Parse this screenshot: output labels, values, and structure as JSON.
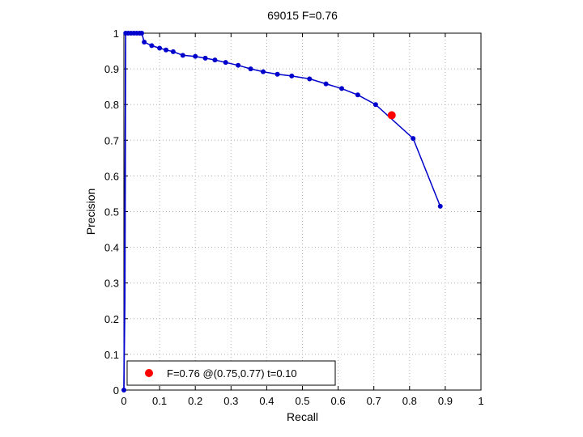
{
  "chart_data": {
    "type": "line",
    "title": "69015 F=0.76",
    "xlabel": "Recall",
    "ylabel": "Precision",
    "xlim": [
      0,
      1
    ],
    "ylim": [
      0,
      1
    ],
    "grid": true,
    "x_ticks": [
      "0",
      "0.1",
      "0.2",
      "0.3",
      "0.4",
      "0.5",
      "0.6",
      "0.7",
      "0.8",
      "0.9",
      "1"
    ],
    "y_ticks": [
      "0",
      "0.1",
      "0.2",
      "0.3",
      "0.4",
      "0.5",
      "0.6",
      "0.7",
      "0.8",
      "0.9",
      "1"
    ],
    "series": [
      {
        "color": "#0000cc",
        "marker": "dot",
        "points": [
          {
            "x": 0.0,
            "y": 0.0
          },
          {
            "x": 0.005,
            "y": 1.0
          },
          {
            "x": 0.012,
            "y": 1.0
          },
          {
            "x": 0.02,
            "y": 1.0
          },
          {
            "x": 0.028,
            "y": 1.0
          },
          {
            "x": 0.036,
            "y": 1.0
          },
          {
            "x": 0.044,
            "y": 1.0
          },
          {
            "x": 0.05,
            "y": 1.0
          },
          {
            "x": 0.057,
            "y": 0.975
          },
          {
            "x": 0.078,
            "y": 0.965
          },
          {
            "x": 0.1,
            "y": 0.958
          },
          {
            "x": 0.118,
            "y": 0.953
          },
          {
            "x": 0.138,
            "y": 0.948
          },
          {
            "x": 0.165,
            "y": 0.938
          },
          {
            "x": 0.2,
            "y": 0.935
          },
          {
            "x": 0.228,
            "y": 0.93
          },
          {
            "x": 0.255,
            "y": 0.925
          },
          {
            "x": 0.285,
            "y": 0.918
          },
          {
            "x": 0.32,
            "y": 0.91
          },
          {
            "x": 0.355,
            "y": 0.9
          },
          {
            "x": 0.39,
            "y": 0.892
          },
          {
            "x": 0.43,
            "y": 0.885
          },
          {
            "x": 0.47,
            "y": 0.88
          },
          {
            "x": 0.52,
            "y": 0.872
          },
          {
            "x": 0.566,
            "y": 0.858
          },
          {
            "x": 0.61,
            "y": 0.845
          },
          {
            "x": 0.655,
            "y": 0.827
          },
          {
            "x": 0.705,
            "y": 0.8
          },
          {
            "x": 0.81,
            "y": 0.705
          },
          {
            "x": 0.886,
            "y": 0.515
          }
        ],
        "lead_in": [
          {
            "x": 0.0,
            "y": 0.0
          },
          {
            "x": 0.003,
            "y": 0.25
          },
          {
            "x": 0.004,
            "y": 0.6
          },
          {
            "x": 0.005,
            "y": 1.0
          }
        ]
      }
    ],
    "highlight_point": {
      "x": 0.75,
      "y": 0.77,
      "color": "#ff0000"
    },
    "legend": {
      "location": "bottom-left",
      "entries": [
        {
          "label": "F=0.76 @(0.75,0.77) t=0.10",
          "color": "#ff0000",
          "marker": "big-dot"
        }
      ]
    }
  }
}
